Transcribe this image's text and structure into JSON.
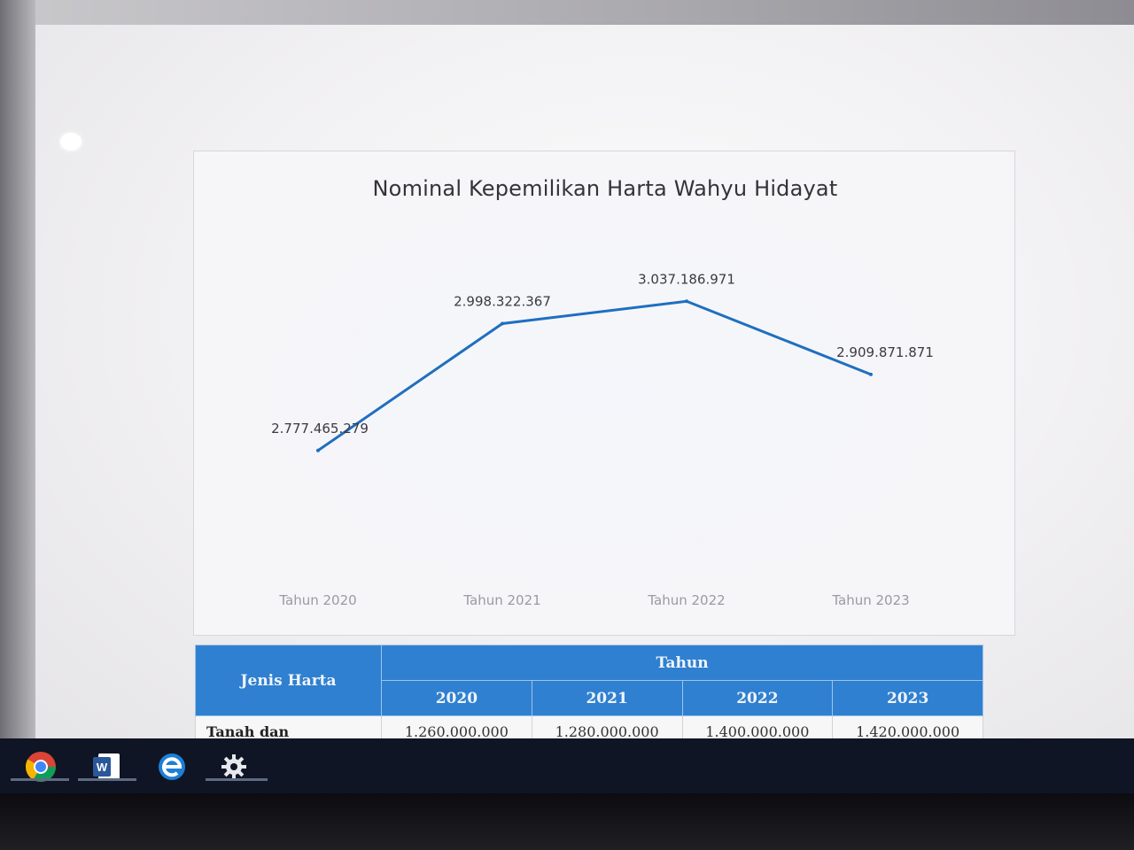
{
  "chart_data": {
    "type": "line",
    "title": "Nominal Kepemilikan Harta Wahyu Hidayat",
    "categories": [
      "Tahun 2020",
      "Tahun 2021",
      "Tahun 2022",
      "Tahun 2023"
    ],
    "values": [
      2777465279,
      2998322367,
      3037186971,
      2909871871
    ],
    "data_labels": [
      "2.777.465.279",
      "2.998.322.367",
      "3.037.186.971",
      "2.909.871.871"
    ],
    "line_color": "#1f6fbf",
    "grid": false,
    "legend": "none"
  },
  "table": {
    "header_left": "Jenis Harta",
    "header_group": "Tahun",
    "years": [
      "2020",
      "2021",
      "2022",
      "2023"
    ],
    "rows": [
      {
        "label": "Tanah dan",
        "values": [
          "1.260.000.000",
          "1.280.000.000",
          "1.400.000.000",
          "1.420.000.000"
        ]
      }
    ],
    "header_color": "#2f80d0"
  },
  "taskbar": {
    "icons": [
      "chrome-icon",
      "word-icon",
      "edge-icon",
      "settings-icon"
    ]
  }
}
